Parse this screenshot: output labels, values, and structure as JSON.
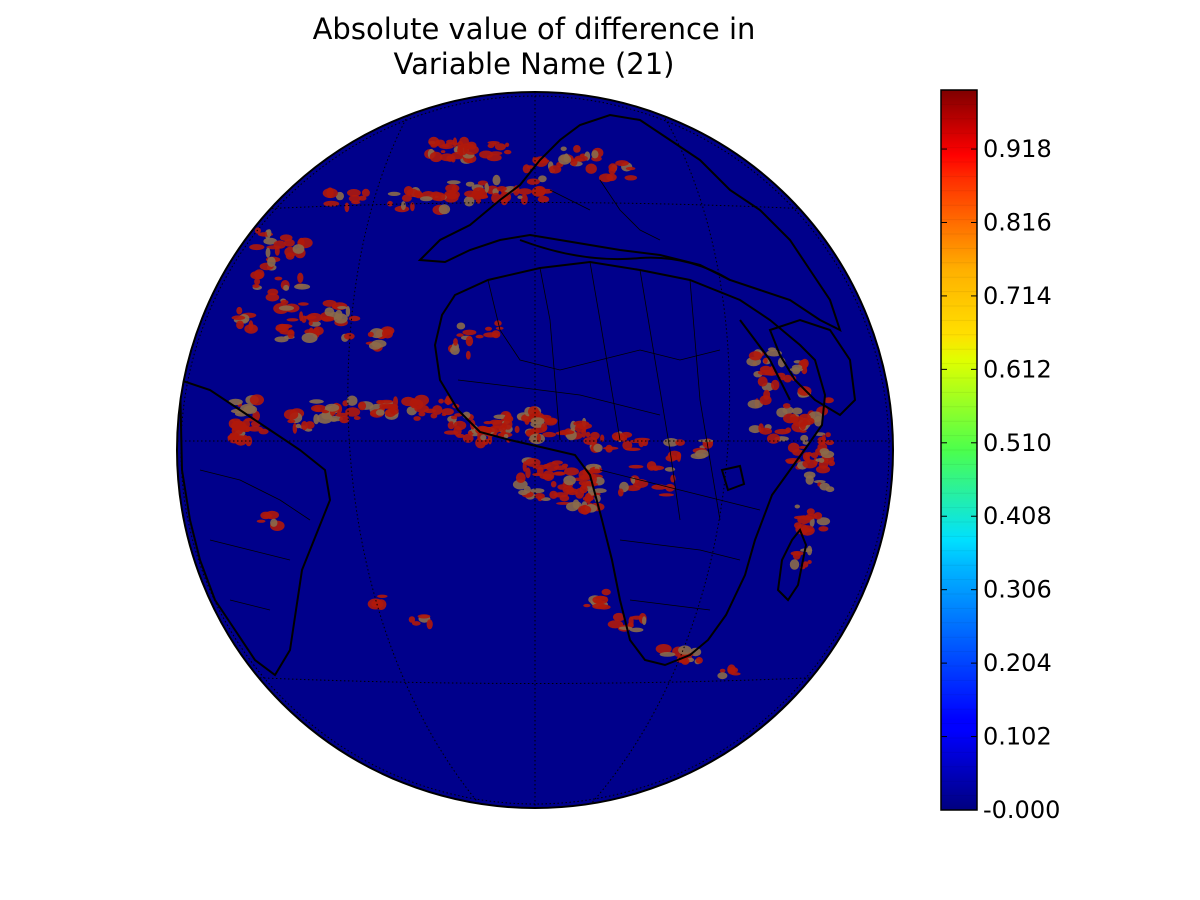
{
  "figure": {
    "title_line1": "Absolute value of difference in",
    "title_line2": "Variable Name (21)"
  },
  "map": {
    "projection": "orthographic",
    "background_value_color": "#00008b",
    "hotspot_color": "#b0180a",
    "coastline_color": "#000000",
    "graticule": "dotted",
    "graticule_color": "#000000"
  },
  "colorbar": {
    "colormap": "jet",
    "ticks": [
      "0.918",
      "0.816",
      "0.714",
      "0.612",
      "0.510",
      "0.408",
      "0.306",
      "0.204",
      "0.102",
      "-0.000"
    ]
  },
  "chart_data": {
    "type": "heatmap",
    "title": "Absolute value of difference in Variable Name (21)",
    "colorbar_range": [
      0.0,
      1.0
    ],
    "colorbar_ticks": [
      -0.0,
      0.102,
      0.204,
      0.306,
      0.408,
      0.51,
      0.612,
      0.714,
      0.816,
      0.918
    ],
    "background_value": 0.0,
    "hotspot_value": 1.0
  }
}
